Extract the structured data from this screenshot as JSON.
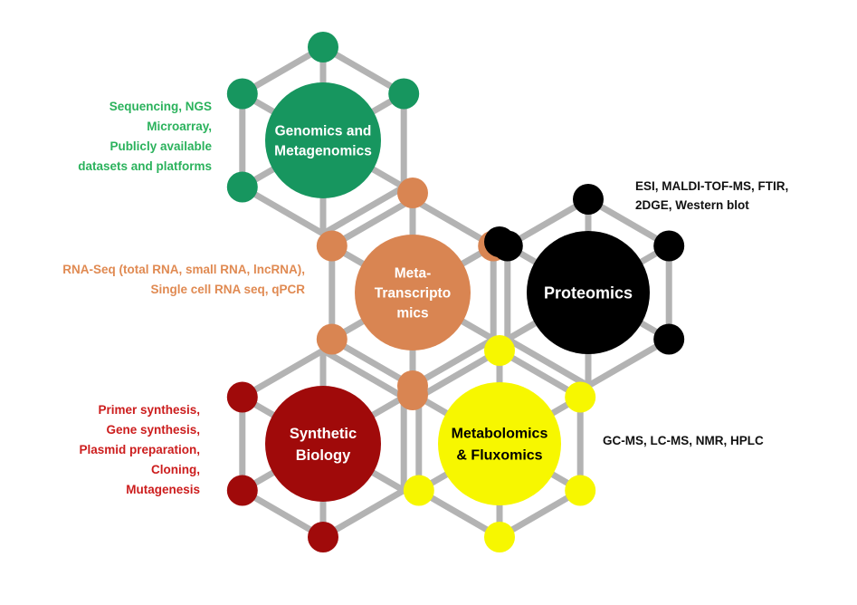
{
  "colors": {
    "genomics": "#17965f",
    "transcriptomics": "#d98552",
    "proteomics": "#000000",
    "synthetic": "#a00a0a",
    "metabolomics": "#f7f700",
    "edge": "#b3b3b3",
    "label_light": "#ffffff",
    "label_dark": "#000000",
    "anno_green": "#2bb25c",
    "anno_orange": "#e08a52",
    "anno_red": "#cc1d1d",
    "anno_black": "#111111"
  },
  "hubs": {
    "genomics": {
      "lines": [
        "Genomics and",
        "Metagenomics"
      ]
    },
    "transcriptomics": {
      "lines": [
        "Meta-",
        "Transcripto",
        "mics"
      ]
    },
    "proteomics": {
      "lines": [
        "Proteomics"
      ]
    },
    "synthetic": {
      "lines": [
        "Synthetic",
        "Biology"
      ]
    },
    "metabolomics": {
      "lines": [
        "Metabolomics",
        "& Fluxomics"
      ]
    }
  },
  "annotations": {
    "genomics": [
      "Sequencing, NGS",
      "Microarray,",
      "Publicly available",
      "datasets and platforms"
    ],
    "transcriptomics": [
      "RNA-Seq (total RNA, small RNA, lncRNA),",
      "Single cell RNA seq, qPCR"
    ],
    "proteomics": [
      "ESI, MALDI-TOF-MS, FTIR,",
      "2DGE, Western blot"
    ],
    "synthetic": [
      "Primer synthesis,",
      "Gene synthesis,",
      "Plasmid preparation,",
      "Cloning,",
      "Mutagenesis"
    ],
    "metabolomics": [
      "GC-MS, LC-MS, NMR, HPLC"
    ]
  }
}
